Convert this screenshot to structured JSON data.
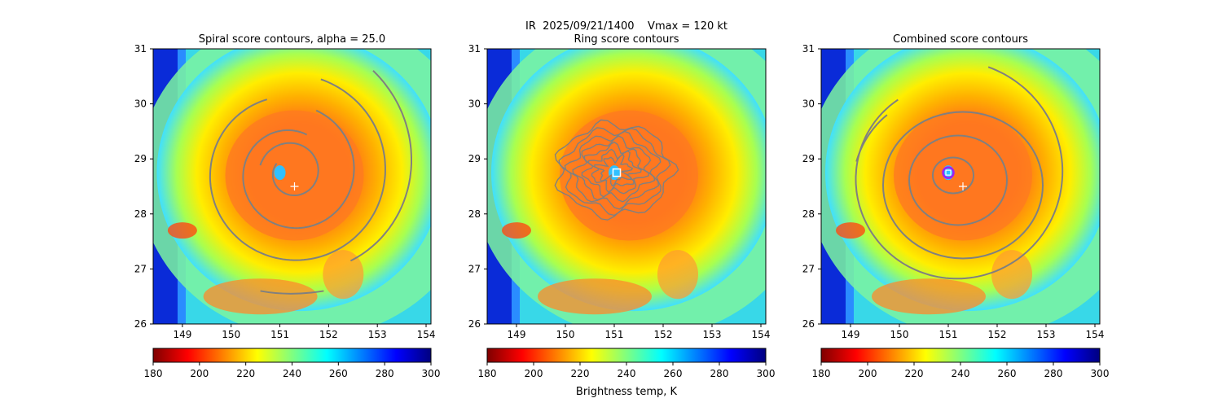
{
  "suptitle": "IR  2025/09/21/1400    Vmax = 120 kt",
  "colorbar_label": "Brightness temp, K",
  "colormap": {
    "name": "jet",
    "range": [
      180,
      300
    ],
    "ticks": [
      "180",
      "200",
      "220",
      "240",
      "260",
      "280",
      "300"
    ],
    "stops": [
      "#7f0000",
      "#ff0000",
      "#ffff00",
      "#00ffff",
      "#0000ff",
      "#00007f"
    ]
  },
  "contour_color": "#808080",
  "chart_data": [
    {
      "type": "heatmap",
      "title": "Spiral score contours, alpha = 25.0",
      "xlim": [
        148.4,
        154.1
      ],
      "ylim": [
        26,
        31
      ],
      "xticks": [
        "149",
        "150",
        "151",
        "152",
        "153",
        "154"
      ],
      "yticks": [
        "26",
        "27",
        "28",
        "29",
        "30",
        "31"
      ],
      "storm_center": {
        "x": 151.3,
        "y": 28.5,
        "marker": "+"
      },
      "eye": {
        "x": 151.0,
        "y": 28.75
      },
      "contour_type": "spiral"
    },
    {
      "type": "heatmap",
      "title": "Ring score contours",
      "xlim": [
        148.4,
        154.1
      ],
      "ylim": [
        26,
        31
      ],
      "xticks": [
        "149",
        "150",
        "151",
        "152",
        "153",
        "154"
      ],
      "yticks": [
        "26",
        "27",
        "28",
        "29",
        "30",
        "31"
      ],
      "ring_center": {
        "x": 151.05,
        "y": 28.75,
        "marker": "square"
      },
      "eye": {
        "x": 151.0,
        "y": 28.75
      },
      "contour_type": "ring"
    },
    {
      "type": "heatmap",
      "title": "Combined score contours",
      "xlim": [
        148.4,
        154.1
      ],
      "ylim": [
        26,
        31
      ],
      "xticks": [
        "149",
        "150",
        "151",
        "152",
        "153",
        "154"
      ],
      "yticks": [
        "26",
        "27",
        "28",
        "29",
        "30",
        "31"
      ],
      "storm_center": {
        "x": 151.3,
        "y": 28.5,
        "marker": "+"
      },
      "combined_center": {
        "x": 151.0,
        "y": 28.75,
        "marker": "circle"
      },
      "eye": {
        "x": 151.0,
        "y": 28.75
      },
      "contour_type": "combined"
    }
  ]
}
